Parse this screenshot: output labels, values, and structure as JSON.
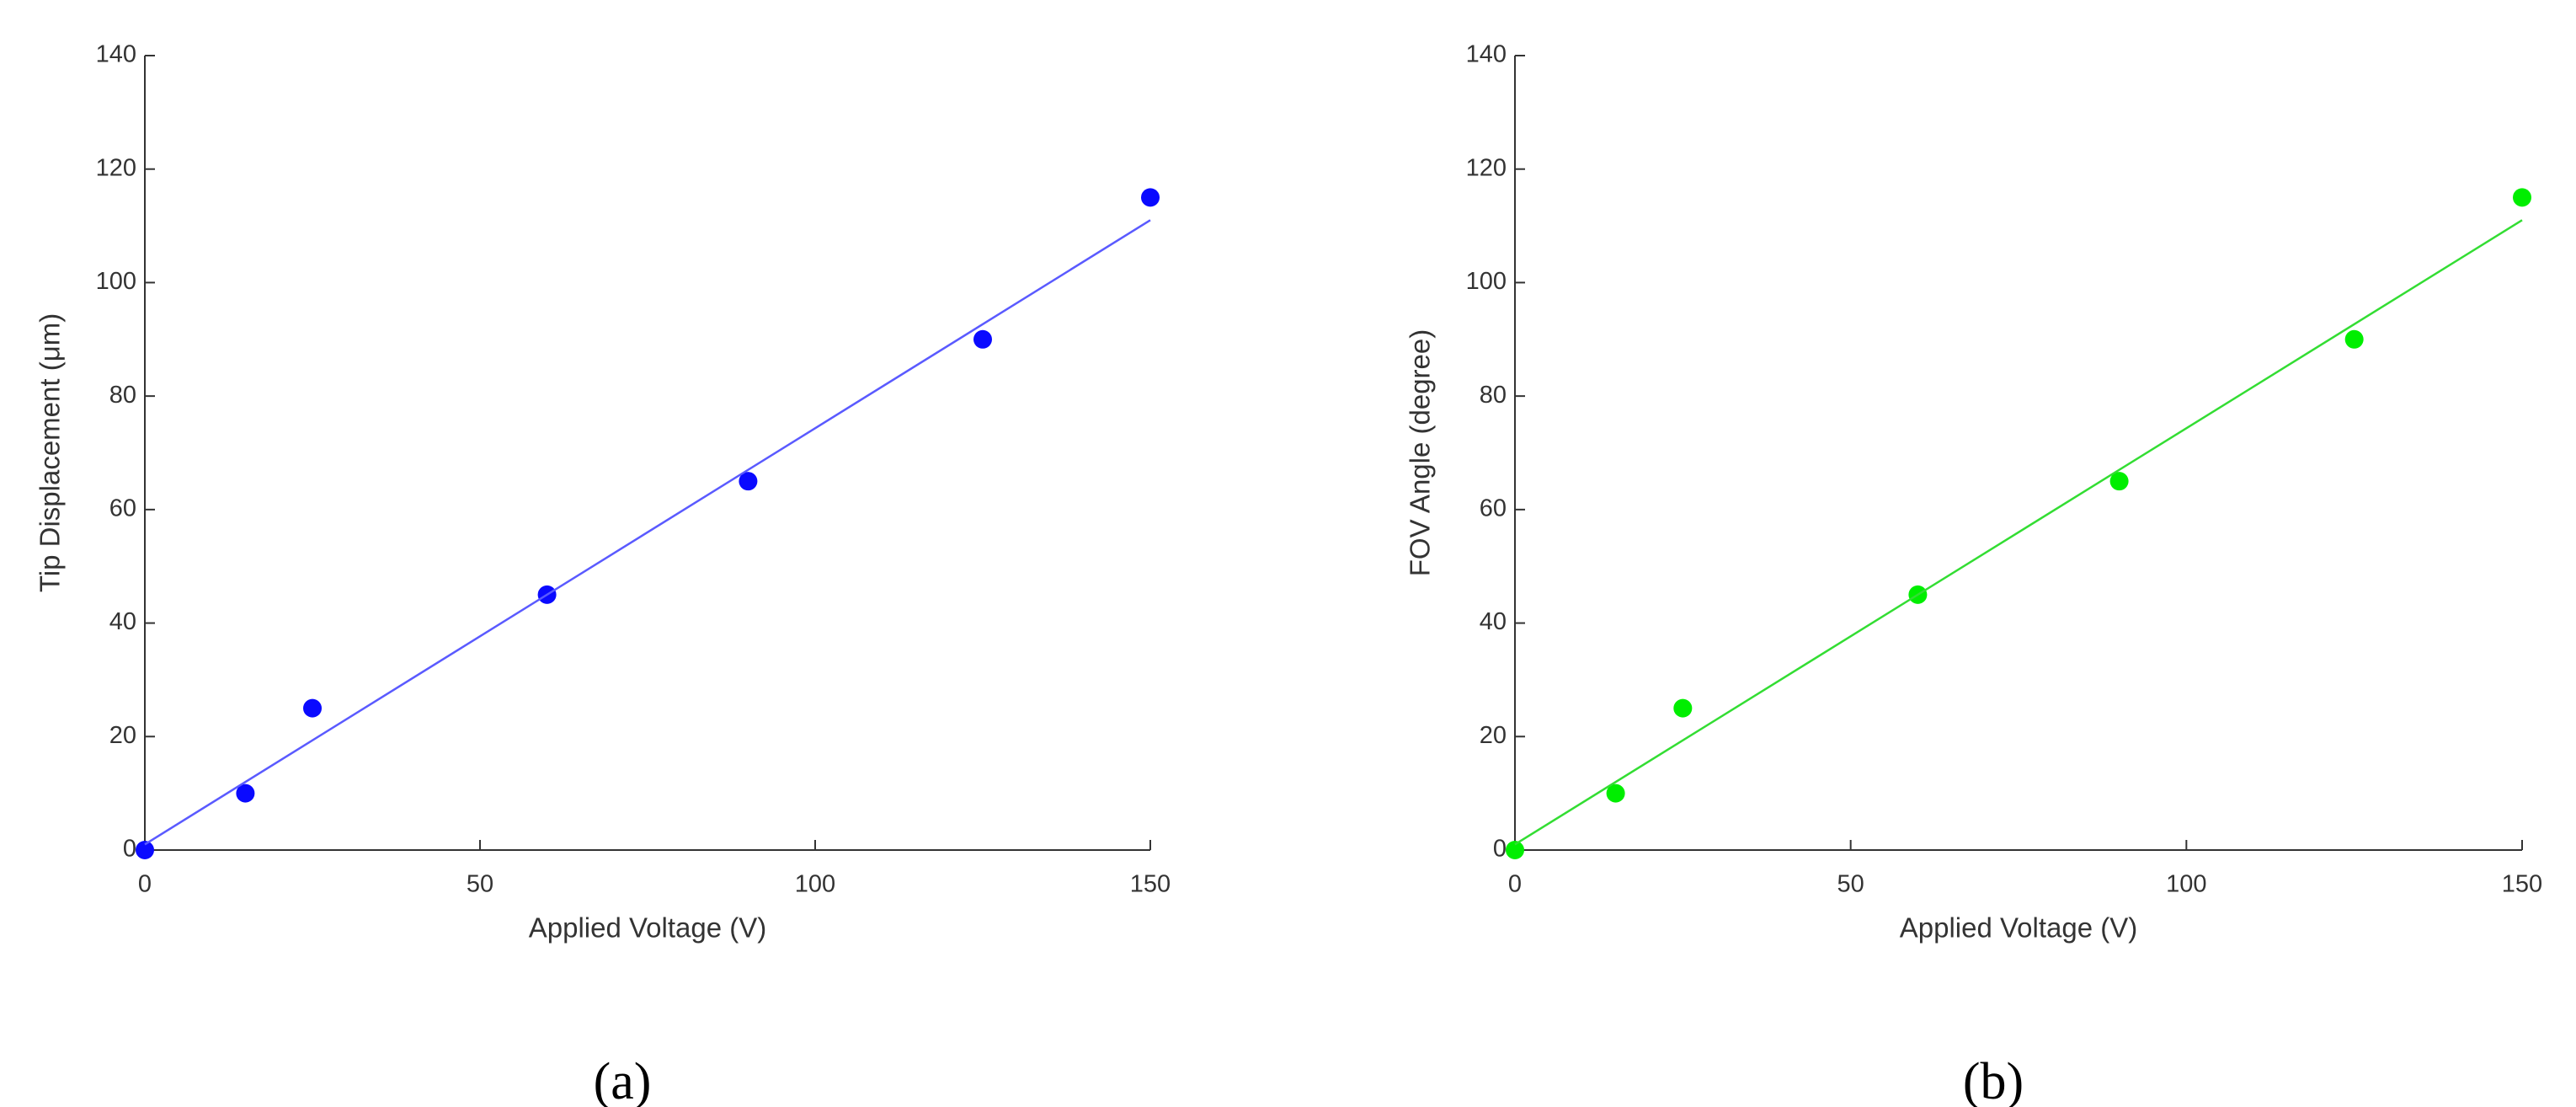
{
  "chart_data": [
    {
      "type": "scatter",
      "xlabel": "Applied Voltage (V)",
      "ylabel": "Tip Displacement (μm)",
      "caption": "(a)",
      "xlim": [
        0,
        150
      ],
      "ylim": [
        0,
        140
      ],
      "xticks": [
        0,
        50,
        100,
        150
      ],
      "yticks": [
        0,
        20,
        40,
        60,
        80,
        100,
        120,
        140
      ],
      "series": [
        {
          "mode": "markers",
          "color": "#0a0aff",
          "x": [
            0,
            15,
            25,
            60,
            90,
            125,
            150
          ],
          "values": [
            0,
            10,
            25,
            45,
            65,
            90,
            115
          ]
        },
        {
          "mode": "line",
          "color": "#5a5aff",
          "x": [
            0,
            150
          ],
          "values": [
            1,
            111
          ]
        }
      ]
    },
    {
      "type": "scatter",
      "xlabel": "Applied Voltage (V)",
      "ylabel": "FOV Angle (degree)",
      "caption": "(b)",
      "xlim": [
        0,
        150
      ],
      "ylim": [
        0,
        140
      ],
      "xticks": [
        0,
        50,
        100,
        150
      ],
      "yticks": [
        0,
        20,
        40,
        60,
        80,
        100,
        120,
        140
      ],
      "series": [
        {
          "mode": "markers",
          "color": "#00ee00",
          "x": [
            0,
            15,
            25,
            60,
            90,
            125,
            150
          ],
          "values": [
            0,
            10,
            25,
            45,
            65,
            90,
            115
          ]
        },
        {
          "mode": "line",
          "color": "#33dd33",
          "x": [
            0,
            150
          ],
          "values": [
            1,
            111
          ]
        }
      ]
    }
  ]
}
